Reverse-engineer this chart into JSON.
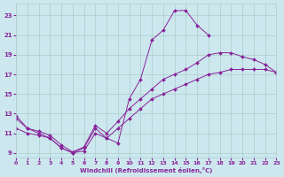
{
  "xlabel": "Windchill (Refroidissement éolien,°C)",
  "bg_color": "#cce8ee",
  "grid_color": "#aacccc",
  "line_color": "#882299",
  "xlim": [
    0,
    23
  ],
  "ylim": [
    8.5,
    24.2
  ],
  "xticks": [
    0,
    1,
    2,
    3,
    4,
    5,
    6,
    7,
    8,
    9,
    10,
    11,
    12,
    13,
    14,
    15,
    16,
    17,
    18,
    19,
    20,
    21,
    22,
    23
  ],
  "yticks": [
    9,
    11,
    13,
    15,
    17,
    19,
    21,
    23
  ],
  "curve1_x": [
    0,
    1,
    2,
    3,
    4,
    5,
    6,
    7,
    8,
    9,
    10,
    11,
    12,
    13,
    14,
    15,
    16,
    17
  ],
  "curve1_y": [
    12.5,
    11.5,
    11.0,
    10.5,
    9.5,
    9.0,
    9.5,
    11.5,
    10.5,
    10.0,
    14.5,
    16.5,
    20.5,
    21.5,
    23.5,
    23.5,
    22.0,
    21.0
  ],
  "curve2_x": [
    0,
    1,
    2,
    3,
    4,
    5,
    6,
    7,
    8,
    9,
    10,
    11,
    12,
    13,
    14,
    15,
    16,
    17,
    18,
    19,
    20,
    21,
    22,
    23
  ],
  "curve2_y": [
    12.8,
    11.5,
    11.2,
    10.8,
    9.8,
    9.1,
    9.6,
    11.8,
    11.0,
    12.2,
    13.5,
    14.5,
    15.5,
    16.5,
    17.0,
    17.5,
    18.2,
    19.0,
    19.2,
    19.2,
    18.8,
    18.5,
    18.0,
    17.2
  ],
  "curve3_x": [
    0,
    1,
    2,
    3,
    4,
    5,
    6,
    7,
    8,
    9,
    10,
    11,
    12,
    13,
    14,
    15,
    16,
    17,
    18,
    19,
    20,
    21,
    22,
    23
  ],
  "curve3_y": [
    11.5,
    11.0,
    10.8,
    10.5,
    9.5,
    9.0,
    9.2,
    11.0,
    10.5,
    11.5,
    12.5,
    13.5,
    14.5,
    15.0,
    15.5,
    16.0,
    16.5,
    17.0,
    17.2,
    17.5,
    17.5,
    17.5,
    17.5,
    17.2
  ]
}
